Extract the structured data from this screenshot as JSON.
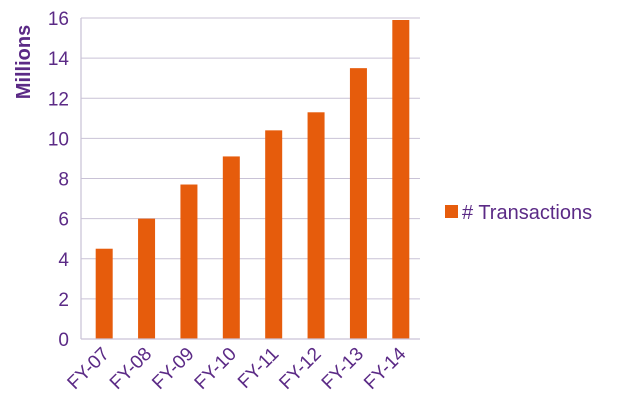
{
  "chart_data": {
    "type": "bar",
    "categories": [
      "FY-07",
      "FY-08",
      "FY-09",
      "FY-10",
      "FY-11",
      "FY-12",
      "FY-13",
      "FY-14"
    ],
    "series": [
      {
        "name": "# Transactions",
        "values": [
          4.5,
          6.0,
          7.7,
          9.1,
          10.4,
          11.3,
          13.5,
          15.9
        ]
      }
    ],
    "title": "",
    "xlabel": "",
    "ylabel": "Millions",
    "ylim": [
      0,
      16
    ],
    "yticks": [
      "0",
      "2",
      "4",
      "6",
      "8",
      "10",
      "12",
      "14",
      "16"
    ],
    "grid": true,
    "legend": "right",
    "bar_color": "#e65c0c",
    "text_color": "#5b2a86",
    "grid_color": "#c9c2d6"
  }
}
